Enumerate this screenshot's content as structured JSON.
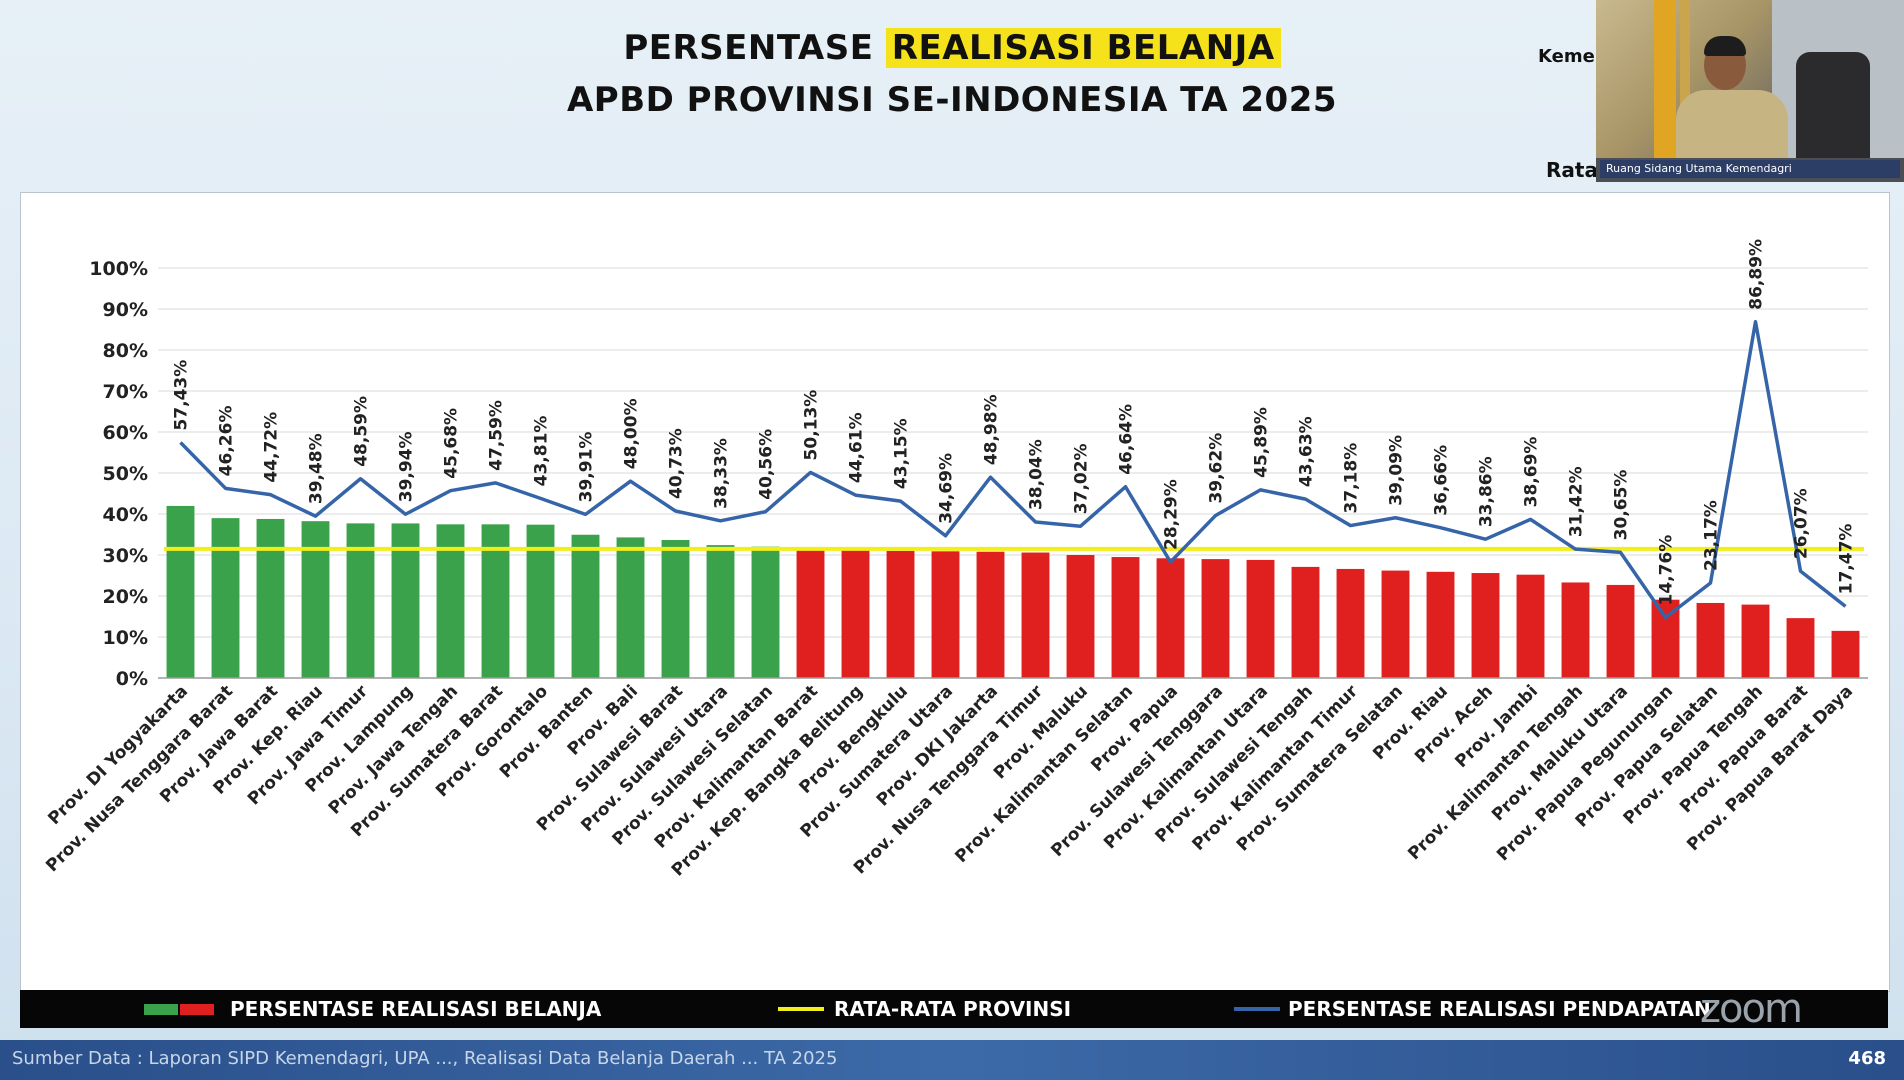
{
  "title": {
    "line1_prefix": "PERSENTASE ",
    "line1_highlight": "REALISASI BELANJA",
    "line2": "APBD PROVINSI SE-INDONESIA TA 2025"
  },
  "webcam": {
    "caption": "Ruang Sidang Utama Kemendagri",
    "side_label_top": "Keme",
    "side_label_bottom": "Rata"
  },
  "legend": {
    "belanja": "PERSENTASE REALISASI BELANJA",
    "rata": "RATA-RATA PROVINSI",
    "pendapatan": "PERSENTASE REALISASI PENDAPATAN"
  },
  "footer": {
    "source": "Sumber Data : Laporan SIPD Kemendagri, UPA ..., Realisasi Data Belanja Daerah ... TA 2025",
    "page": "468"
  },
  "colors": {
    "above_avg_bar": "#3aa24a",
    "below_avg_bar": "#e0201f",
    "average_line": "#f2ee1a",
    "pendapatan_line": "#3565a8"
  },
  "chart_data": {
    "type": "bar",
    "ylim": [
      0,
      100
    ],
    "y_ticks": [
      "0%",
      "10%",
      "20%",
      "30%",
      "40%",
      "50%",
      "60%",
      "70%",
      "80%",
      "90%",
      "100%"
    ],
    "average": 31.5,
    "categories": [
      "Prov. DI Yogyakarta",
      "Prov. Nusa Tenggara Barat",
      "Prov. Jawa Barat",
      "Prov. Kep. Riau",
      "Prov. Jawa Timur",
      "Prov. Lampung",
      "Prov. Jawa Tengah",
      "Prov. Sumatera Barat",
      "Prov. Gorontalo",
      "Prov. Banten",
      "Prov. Bali",
      "Prov. Sulawesi Barat",
      "Prov. Sulawesi Utara",
      "Prov. Sulawesi Selatan",
      "Prov. Kalimantan Barat",
      "Prov. Kep. Bangka Belitung",
      "Prov. Bengkulu",
      "Prov. Sumatera Utara",
      "Prov. DKI Jakarta",
      "Prov. Nusa Tenggara Timur",
      "Prov. Maluku",
      "Prov. Kalimantan Selatan",
      "Prov. Papua",
      "Prov. Sulawesi Tenggara",
      "Prov. Kalimantan Utara",
      "Prov. Sulawesi Tengah",
      "Prov. Kalimantan Timur",
      "Prov. Sumatera Selatan",
      "Prov. Riau",
      "Prov. Aceh",
      "Prov. Jambi",
      "Prov. Kalimantan Tengah",
      "Prov. Maluku Utara",
      "Prov. Papua Pegunungan",
      "Prov. Papua Selatan",
      "Prov. Papua Tengah",
      "Prov. Papua Barat",
      "Prov. Papua Barat Daya"
    ],
    "series": [
      {
        "name": "PERSENTASE REALISASI BELANJA",
        "type": "bar",
        "values": [
          41.97,
          38.99,
          38.79,
          38.25,
          37.71,
          37.7,
          37.48,
          37.48,
          37.4,
          34.94,
          34.29,
          33.66,
          32.41,
          32.04,
          31.47,
          31.16,
          31.0,
          30.9,
          30.8,
          30.6,
          30.0,
          29.5,
          29.2,
          29.0,
          28.8,
          27.1,
          26.6,
          26.2,
          25.9,
          25.6,
          25.2,
          23.3,
          22.7,
          19.1,
          18.3,
          17.9,
          14.6,
          11.5
        ]
      },
      {
        "name": "PERSENTASE REALISASI PENDAPATAN",
        "type": "line",
        "values": [
          57.43,
          46.26,
          44.72,
          39.48,
          48.59,
          39.94,
          45.68,
          47.59,
          43.81,
          39.91,
          48.0,
          40.73,
          38.33,
          40.56,
          50.13,
          44.61,
          43.15,
          34.69,
          48.98,
          38.04,
          37.02,
          46.64,
          28.29,
          39.62,
          45.89,
          43.63,
          37.18,
          39.09,
          36.66,
          33.86,
          38.69,
          31.42,
          30.65,
          14.76,
          23.17,
          86.89,
          26.07,
          17.47
        ],
        "labels": [
          "57,43%",
          "46,26%",
          "44,72%",
          "39,48%",
          "48,59%",
          "39,94%",
          "45,68%",
          "47,59%",
          "43,81%",
          "39,91%",
          "48,00%",
          "40,73%",
          "38,33%",
          "40,56%",
          "50,13%",
          "44,61%",
          "43,15%",
          "34,69%",
          "48,98%",
          "38,04%",
          "37,02%",
          "46,64%",
          "28,29%",
          "39,62%",
          "45,89%",
          "43,63%",
          "37,18%",
          "39,09%",
          "36,66%",
          "33,86%",
          "38,69%",
          "31,42%",
          "30,65%",
          "14,76%",
          "23,17%",
          "86,89%",
          "26,07%",
          "17,47%"
        ]
      }
    ],
    "legend": [
      "PERSENTASE REALISASI BELANJA",
      "RATA-RATA PROVINSI",
      "PERSENTASE REALISASI PENDAPATAN"
    ],
    "legend_position": "bottom",
    "grid": true
  }
}
